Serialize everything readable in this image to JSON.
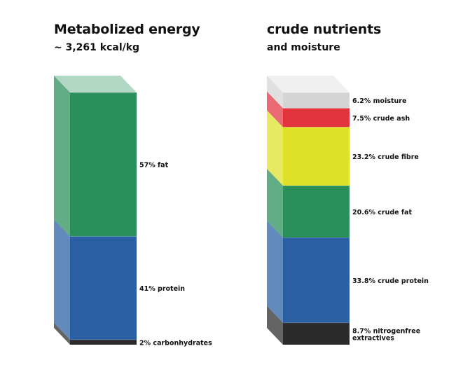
{
  "chart_data": [
    {
      "type": "stacked-bar",
      "title": "Metabolized energy",
      "subtitle": "~ 3,261 kcal/kg",
      "segments": [
        {
          "label": "2% carbonhydrates",
          "value": 2,
          "color": "#2b2b2b"
        },
        {
          "label": "41% protein",
          "value": 41,
          "color": "#2a5fa4"
        },
        {
          "label": "57% fat",
          "value": 57,
          "color": "#2a8f5a"
        }
      ]
    },
    {
      "type": "stacked-bar",
      "title": "crude nutrients",
      "subtitle": "and moisture",
      "segments": [
        {
          "label": "8.7% nitrogenfree extractives",
          "value": 8.7,
          "color": "#2b2b2b"
        },
        {
          "label": "33.8% crude protein",
          "value": 33.8,
          "color": "#2a5fa4"
        },
        {
          "label": "20.6% crude fat",
          "value": 20.6,
          "color": "#2a8f5a"
        },
        {
          "label": "23.2% crude fibre",
          "value": 23.2,
          "color": "#dfe128"
        },
        {
          "label": "7.5% crude ash",
          "value": 7.5,
          "color": "#e2333f"
        },
        {
          "label": "6.2% moisture",
          "value": 6.2,
          "color": "#d4d4d4"
        }
      ]
    }
  ]
}
